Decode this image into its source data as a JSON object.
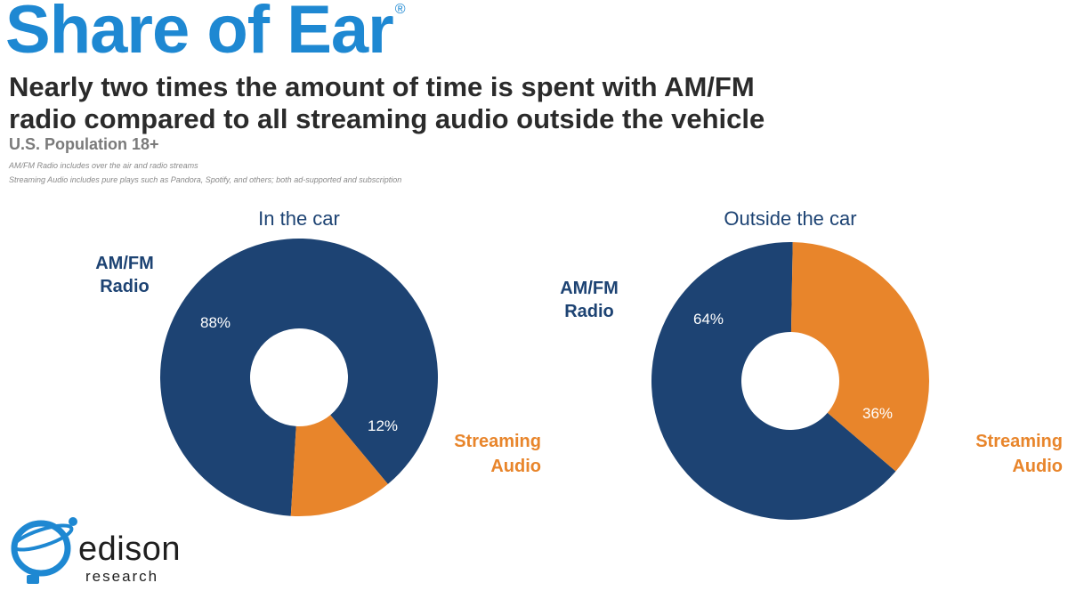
{
  "header": {
    "brand": "Share of Ear",
    "registered": "®",
    "headline_line1": "Nearly two times the amount of time is spent with AM/FM",
    "headline_line2": "radio compared to all streaming audio outside the vehicle",
    "subheading": "U.S. Population 18+",
    "note1": "AM/FM Radio includes over the air and radio streams",
    "note2": "Streaming Audio includes pure plays such as Pandora, Spotify, and others; both ad-supported and subscription"
  },
  "colors": {
    "amfm": "#1d4373",
    "streaming": "#e8852b",
    "brand": "#1e88d2"
  },
  "chart_data": [
    {
      "type": "pie",
      "title": "In the car",
      "series": [
        {
          "name": "AM/FM Radio",
          "label": "88%",
          "value": 88
        },
        {
          "name": "Streaming Audio",
          "label": "12%",
          "value": 12
        }
      ],
      "category_labels": {
        "amfm": [
          "AM/FM",
          "Radio"
        ],
        "streaming": [
          "Streaming",
          "Audio"
        ]
      }
    },
    {
      "type": "pie",
      "title": "Outside the car",
      "series": [
        {
          "name": "AM/FM Radio",
          "label": "64%",
          "value": 64
        },
        {
          "name": "Streaming Audio",
          "label": "36%",
          "value": 36
        }
      ],
      "category_labels": {
        "amfm": [
          "AM/FM",
          "Radio"
        ],
        "streaming": [
          "Streaming",
          "Audio"
        ]
      }
    }
  ],
  "logo": {
    "name": "edison",
    "sub": "research"
  }
}
